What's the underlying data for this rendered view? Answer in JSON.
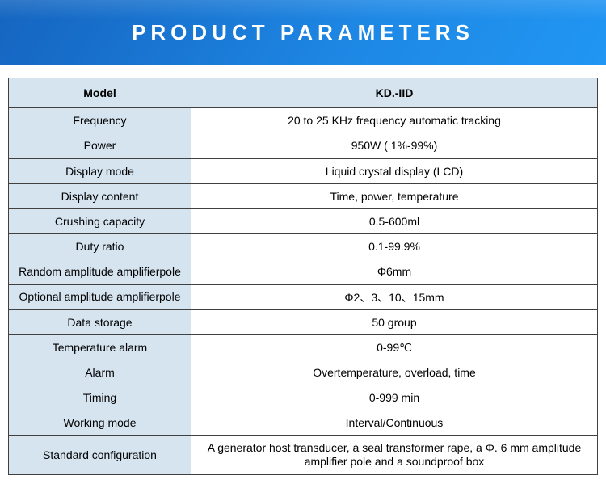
{
  "banner": {
    "title": "PRODUCT  PARAMETERS",
    "bg_gradient": [
      "#1565c0",
      "#1976d2",
      "#1e88e5",
      "#2196f3"
    ],
    "text_color": "#ffffff",
    "title_fontsize": 26,
    "letter_spacing": 6
  },
  "table": {
    "type": "table",
    "border_color": "#404040",
    "label_bg": "#d6e4f0",
    "value_bg": "#ffffff",
    "text_color": "#000000",
    "fontsize": 14,
    "col_widths": [
      "31%",
      "69%"
    ],
    "header": {
      "label": "Model",
      "value": "KD.-IID"
    },
    "rows": [
      {
        "label": "Frequency",
        "value": "20 to 25 KHz frequency automatic tracking"
      },
      {
        "label": "Power",
        "value": "950W ( 1%-99%)"
      },
      {
        "label": "Display mode",
        "value": "Liquid crystal display (LCD)"
      },
      {
        "label": "Display content",
        "value": "Time, power, temperature"
      },
      {
        "label": "Crushing capacity",
        "value": "0.5-600ml"
      },
      {
        "label": "Duty ratio",
        "value": "0.1-99.9%"
      },
      {
        "label": "Random amplitude amplifierpole",
        "value": "Φ6mm"
      },
      {
        "label": "Optional amplitude amplifierpole",
        "value": "Φ2、3、10、15mm"
      },
      {
        "label": "Data storage",
        "value": "50 group"
      },
      {
        "label": "Temperature alarm",
        "value": "0-99℃"
      },
      {
        "label": "Alarm",
        "value": "Overtemperature, overload, time"
      },
      {
        "label": "Timing",
        "value": "0-999 min"
      },
      {
        "label": "Working mode",
        "value": "Interval/Continuous"
      },
      {
        "label": "Standard configuration",
        "value": "A generator host transducer, a seal transformer rape, a Φ. 6 mm amplitude amplifier pole and a soundproof box"
      }
    ]
  }
}
